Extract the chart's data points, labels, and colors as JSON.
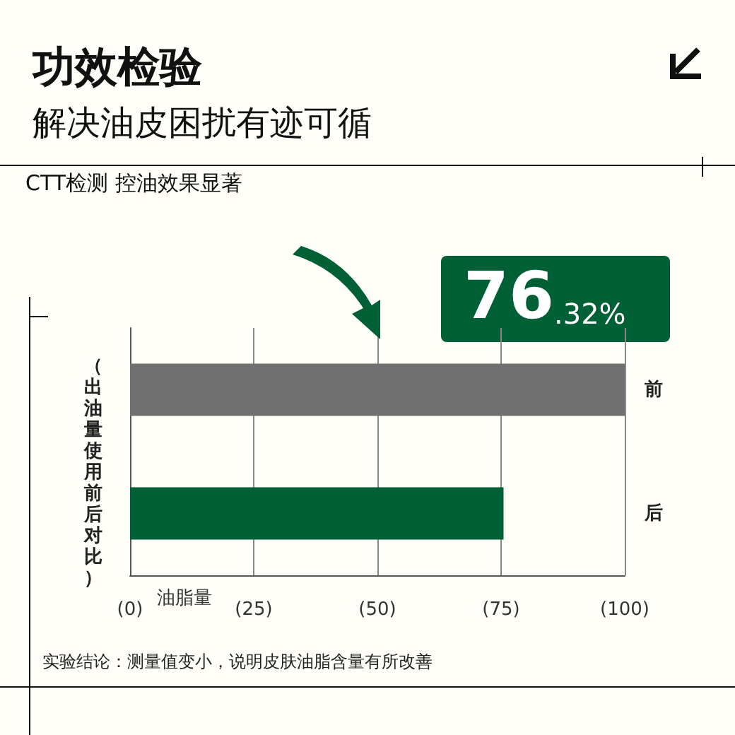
{
  "chart_data": {
    "type": "bar",
    "orientation": "horizontal",
    "title": "功效检验",
    "subtitle": "解决油皮困扰有迹可循",
    "xlabel": "油脂量",
    "ylabel": "（出油量使用前后对比）",
    "categories": [
      "前",
      "后"
    ],
    "values": [
      100,
      75.5
    ],
    "colors": [
      "#707070",
      "#006035"
    ],
    "xlim": [
      0,
      100
    ],
    "xticks": [
      {
        "value": 0,
        "label": "(0)"
      },
      {
        "value": 25,
        "label": "(25)"
      },
      {
        "value": 50,
        "label": "(50)"
      },
      {
        "value": 75,
        "label": "(75)"
      },
      {
        "value": 100,
        "label": "(100)"
      }
    ],
    "grid": "x",
    "annotations": [
      "CTT检测 控油效果显著",
      "76.32%",
      "实验结论：测量值变小，说明皮肤油脂含量有所改善"
    ]
  }
}
